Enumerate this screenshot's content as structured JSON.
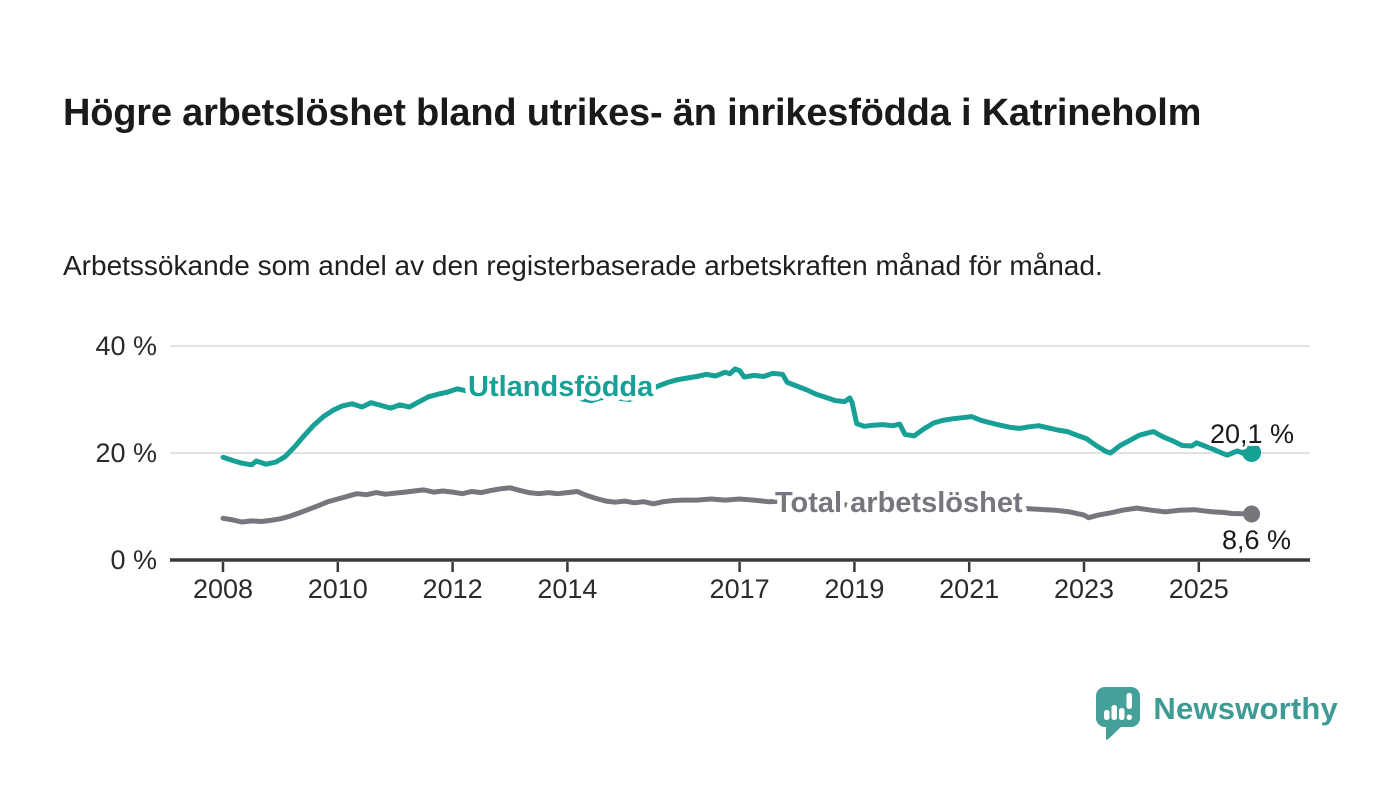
{
  "header": {
    "title": "Högre arbetslöshet bland utrikes- än inrikesfödda i Katrineholm",
    "subtitle": "Arbetssökande som andel av den registerbaserade arbetskraften månad för månad."
  },
  "footer": {
    "brand": "Newsworthy",
    "logo_icon": "bar-chart-speech-bubble-icon"
  },
  "colors": {
    "foreign_born_line": "#16a096",
    "total_line": "#76767d",
    "gridline": "#d8d8d8",
    "axis": "#3a3a3a",
    "value_label_text": "#1a1a1a",
    "brand_teal": "#44a099"
  },
  "chart_data": {
    "type": "line",
    "title": "Högre arbetslöshet bland utrikes- än inrikesfödda i Katrineholm",
    "subtitle": "Arbetssökande som andel av den registerbaserade arbetskraften månad för månad.",
    "xlabel": "",
    "ylabel": "",
    "ylim": [
      0,
      40
    ],
    "grid": "horizontal",
    "legend_position": "inline-labels",
    "y_ticks": [
      {
        "value": 0,
        "label": "0 %"
      },
      {
        "value": 20,
        "label": "20 %"
      },
      {
        "value": 40,
        "label": "40 %"
      }
    ],
    "x_ticks": [
      {
        "value": 2008,
        "label": "2008"
      },
      {
        "value": 2010,
        "label": "2010"
      },
      {
        "value": 2012,
        "label": "2012"
      },
      {
        "value": 2014,
        "label": "2014"
      },
      {
        "value": 2017,
        "label": "2017"
      },
      {
        "value": 2019,
        "label": "2019"
      },
      {
        "value": 2021,
        "label": "2021"
      },
      {
        "value": 2023,
        "label": "2023"
      },
      {
        "value": 2025,
        "label": "2025"
      }
    ],
    "series": [
      {
        "name": "Utlandsfödda",
        "color_key": "foreign_born_line",
        "end_label": "20,1 %",
        "last_value": 20.1,
        "points": [
          [
            2008.0,
            19.2
          ],
          [
            2008.17,
            18.6
          ],
          [
            2008.33,
            18.1
          ],
          [
            2008.5,
            17.8
          ],
          [
            2008.58,
            18.5
          ],
          [
            2008.75,
            17.9
          ],
          [
            2008.92,
            18.3
          ],
          [
            2009.08,
            19.3
          ],
          [
            2009.25,
            21.2
          ],
          [
            2009.42,
            23.3
          ],
          [
            2009.58,
            25.2
          ],
          [
            2009.75,
            26.8
          ],
          [
            2009.92,
            28.0
          ],
          [
            2010.08,
            28.8
          ],
          [
            2010.25,
            29.2
          ],
          [
            2010.42,
            28.6
          ],
          [
            2010.58,
            29.4
          ],
          [
            2010.75,
            28.9
          ],
          [
            2010.92,
            28.4
          ],
          [
            2011.08,
            29.0
          ],
          [
            2011.25,
            28.6
          ],
          [
            2011.42,
            29.6
          ],
          [
            2011.58,
            30.5
          ],
          [
            2011.75,
            31.0
          ],
          [
            2011.92,
            31.4
          ],
          [
            2012.08,
            32.0
          ],
          [
            2012.25,
            31.6
          ],
          [
            2012.42,
            31.3
          ],
          [
            2012.58,
            31.6
          ],
          [
            2012.75,
            32.0
          ],
          [
            2012.92,
            32.5
          ],
          [
            2013.08,
            33.0
          ],
          [
            2013.25,
            33.2
          ],
          [
            2013.42,
            32.8
          ],
          [
            2013.58,
            32.3
          ],
          [
            2013.75,
            31.7
          ],
          [
            2013.92,
            31.2
          ],
          [
            2014.08,
            30.7
          ],
          [
            2014.25,
            30.1
          ],
          [
            2014.42,
            29.8
          ],
          [
            2014.58,
            30.3
          ],
          [
            2014.75,
            30.6
          ],
          [
            2014.92,
            30.2
          ],
          [
            2015.08,
            30.0
          ],
          [
            2015.25,
            30.9
          ],
          [
            2015.42,
            31.7
          ],
          [
            2015.58,
            32.5
          ],
          [
            2015.75,
            33.2
          ],
          [
            2015.92,
            33.7
          ],
          [
            2016.08,
            34.0
          ],
          [
            2016.25,
            34.3
          ],
          [
            2016.42,
            34.7
          ],
          [
            2016.58,
            34.4
          ],
          [
            2016.75,
            35.1
          ],
          [
            2016.83,
            34.8
          ],
          [
            2016.92,
            35.7
          ],
          [
            2017.0,
            35.4
          ],
          [
            2017.08,
            34.2
          ],
          [
            2017.25,
            34.5
          ],
          [
            2017.42,
            34.3
          ],
          [
            2017.58,
            34.9
          ],
          [
            2017.75,
            34.7
          ],
          [
            2017.83,
            33.2
          ],
          [
            2018.0,
            32.5
          ],
          [
            2018.17,
            31.8
          ],
          [
            2018.33,
            31.0
          ],
          [
            2018.5,
            30.4
          ],
          [
            2018.67,
            29.8
          ],
          [
            2018.83,
            29.6
          ],
          [
            2018.92,
            30.3
          ],
          [
            2018.96,
            29.4
          ],
          [
            2019.04,
            25.5
          ],
          [
            2019.17,
            25.0
          ],
          [
            2019.33,
            25.2
          ],
          [
            2019.5,
            25.3
          ],
          [
            2019.67,
            25.1
          ],
          [
            2019.79,
            25.4
          ],
          [
            2019.88,
            23.5
          ],
          [
            2020.04,
            23.2
          ],
          [
            2020.21,
            24.5
          ],
          [
            2020.38,
            25.6
          ],
          [
            2020.54,
            26.1
          ],
          [
            2020.71,
            26.4
          ],
          [
            2020.88,
            26.6
          ],
          [
            2021.04,
            26.8
          ],
          [
            2021.21,
            26.1
          ],
          [
            2021.38,
            25.6
          ],
          [
            2021.54,
            25.2
          ],
          [
            2021.71,
            24.8
          ],
          [
            2021.88,
            24.6
          ],
          [
            2022.04,
            24.9
          ],
          [
            2022.21,
            25.1
          ],
          [
            2022.38,
            24.7
          ],
          [
            2022.54,
            24.3
          ],
          [
            2022.71,
            24.0
          ],
          [
            2022.88,
            23.3
          ],
          [
            2023.04,
            22.7
          ],
          [
            2023.21,
            21.4
          ],
          [
            2023.38,
            20.3
          ],
          [
            2023.46,
            20.0
          ],
          [
            2023.63,
            21.4
          ],
          [
            2023.79,
            22.3
          ],
          [
            2023.96,
            23.3
          ],
          [
            2024.13,
            23.8
          ],
          [
            2024.21,
            24.0
          ],
          [
            2024.38,
            23.0
          ],
          [
            2024.54,
            22.3
          ],
          [
            2024.71,
            21.4
          ],
          [
            2024.88,
            21.3
          ],
          [
            2024.96,
            21.9
          ],
          [
            2025.08,
            21.4
          ],
          [
            2025.25,
            20.7
          ],
          [
            2025.42,
            19.9
          ],
          [
            2025.5,
            19.6
          ],
          [
            2025.67,
            20.4
          ],
          [
            2025.79,
            19.9
          ],
          [
            2025.92,
            20.1
          ]
        ]
      },
      {
        "name": "Total arbetslöshet",
        "color_key": "total_line",
        "end_label": "8,6 %",
        "last_value": 8.6,
        "points": [
          [
            2008.0,
            7.8
          ],
          [
            2008.17,
            7.5
          ],
          [
            2008.33,
            7.1
          ],
          [
            2008.5,
            7.3
          ],
          [
            2008.67,
            7.2
          ],
          [
            2008.83,
            7.4
          ],
          [
            2009.0,
            7.7
          ],
          [
            2009.17,
            8.2
          ],
          [
            2009.33,
            8.8
          ],
          [
            2009.5,
            9.5
          ],
          [
            2009.67,
            10.2
          ],
          [
            2009.83,
            10.9
          ],
          [
            2010.0,
            11.4
          ],
          [
            2010.17,
            11.9
          ],
          [
            2010.33,
            12.4
          ],
          [
            2010.5,
            12.2
          ],
          [
            2010.67,
            12.6
          ],
          [
            2010.83,
            12.3
          ],
          [
            2011.0,
            12.5
          ],
          [
            2011.17,
            12.7
          ],
          [
            2011.33,
            12.9
          ],
          [
            2011.5,
            13.1
          ],
          [
            2011.67,
            12.7
          ],
          [
            2011.83,
            12.9
          ],
          [
            2012.0,
            12.7
          ],
          [
            2012.17,
            12.4
          ],
          [
            2012.33,
            12.8
          ],
          [
            2012.5,
            12.6
          ],
          [
            2012.67,
            13.0
          ],
          [
            2012.83,
            13.3
          ],
          [
            2013.0,
            13.5
          ],
          [
            2013.17,
            13.0
          ],
          [
            2013.33,
            12.6
          ],
          [
            2013.5,
            12.4
          ],
          [
            2013.67,
            12.6
          ],
          [
            2013.83,
            12.4
          ],
          [
            2014.0,
            12.6
          ],
          [
            2014.17,
            12.8
          ],
          [
            2014.33,
            12.1
          ],
          [
            2014.5,
            11.5
          ],
          [
            2014.67,
            11.0
          ],
          [
            2014.83,
            10.8
          ],
          [
            2015.0,
            11.0
          ],
          [
            2015.17,
            10.7
          ],
          [
            2015.33,
            10.9
          ],
          [
            2015.5,
            10.5
          ],
          [
            2015.67,
            10.9
          ],
          [
            2015.83,
            11.1
          ],
          [
            2016.0,
            11.2
          ],
          [
            2016.25,
            11.2
          ],
          [
            2016.5,
            11.4
          ],
          [
            2016.75,
            11.2
          ],
          [
            2017.0,
            11.4
          ],
          [
            2017.25,
            11.2
          ],
          [
            2017.5,
            10.9
          ],
          [
            2017.75,
            11.0
          ],
          [
            2018.0,
            10.8
          ],
          [
            2018.5,
            10.5
          ],
          [
            2019.0,
            10.2
          ],
          [
            2019.5,
            10.0
          ],
          [
            2020.0,
            10.6
          ],
          [
            2020.5,
            10.9
          ],
          [
            2021.0,
            10.5
          ],
          [
            2021.5,
            10.0
          ],
          [
            2022.0,
            9.6
          ],
          [
            2022.5,
            9.3
          ],
          [
            2022.75,
            9.0
          ],
          [
            2023.0,
            8.4
          ],
          [
            2023.08,
            7.9
          ],
          [
            2023.25,
            8.4
          ],
          [
            2023.46,
            8.8
          ],
          [
            2023.67,
            9.3
          ],
          [
            2023.92,
            9.7
          ],
          [
            2024.17,
            9.3
          ],
          [
            2024.42,
            9.0
          ],
          [
            2024.67,
            9.3
          ],
          [
            2024.92,
            9.4
          ],
          [
            2025.08,
            9.2
          ],
          [
            2025.25,
            9.0
          ],
          [
            2025.42,
            8.9
          ],
          [
            2025.58,
            8.7
          ],
          [
            2025.92,
            8.6
          ]
        ]
      }
    ]
  }
}
